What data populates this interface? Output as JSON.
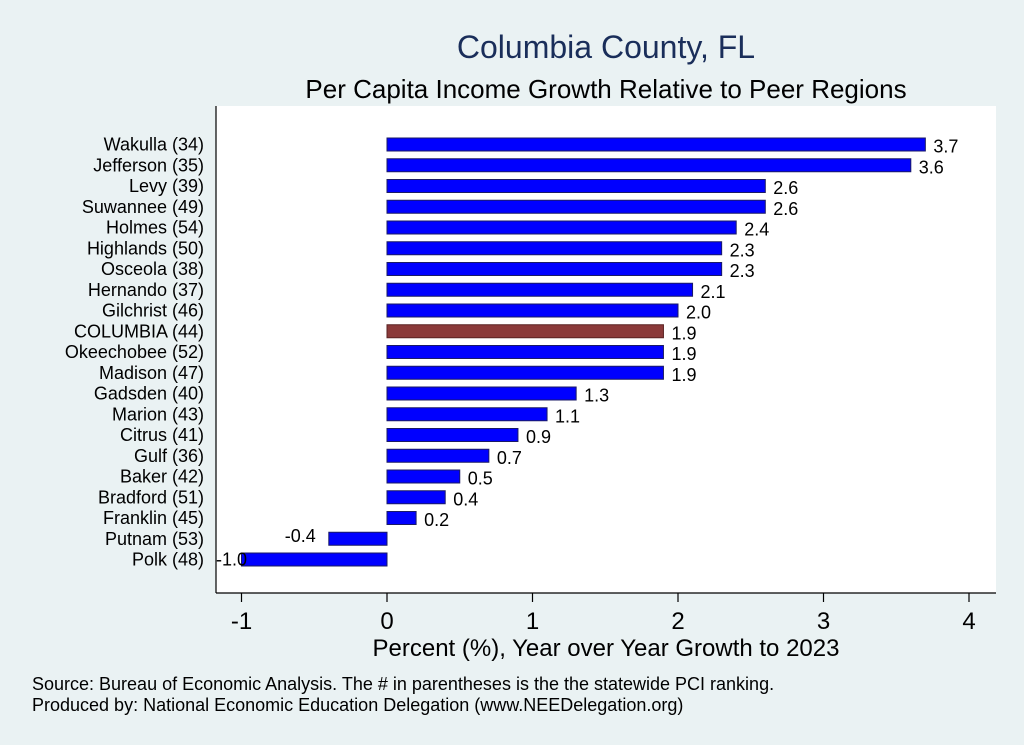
{
  "chart_data": {
    "type": "bar",
    "orientation": "horizontal",
    "title": "Columbia County, FL",
    "subtitle": "Per Capita Income Growth Relative to Peer Regions",
    "xlabel": "Percent (%), Year over Year Growth to 2023",
    "ylabel": "",
    "xlim": [
      -1.2,
      4.2
    ],
    "xticks": [
      -1,
      0,
      1,
      2,
      3,
      4
    ],
    "xtick_labels": [
      "-1",
      "0",
      "1",
      "2",
      "3",
      "4"
    ],
    "grid": false,
    "highlight_category": "COLUMBIA (44)",
    "categories": [
      "Wakulla (34)",
      "Jefferson (35)",
      "Levy (39)",
      "Suwannee (49)",
      "Holmes (54)",
      "Highlands (50)",
      "Osceola (38)",
      "Hernando (37)",
      "Gilchrist (46)",
      "COLUMBIA (44)",
      "Okeechobee (52)",
      "Madison (47)",
      "Gadsden (40)",
      "Marion (43)",
      "Citrus (41)",
      "Gulf (36)",
      "Baker (42)",
      "Bradford (51)",
      "Franklin (45)",
      "Putnam (53)",
      "Polk (48)"
    ],
    "values": [
      3.7,
      3.6,
      2.6,
      2.6,
      2.4,
      2.3,
      2.3,
      2.1,
      2.0,
      1.9,
      1.9,
      1.9,
      1.3,
      1.1,
      0.9,
      0.7,
      0.5,
      0.4,
      0.2,
      -0.4,
      -1.0
    ],
    "value_labels": [
      "3.7",
      "3.6",
      "2.6",
      "2.6",
      "2.4",
      "2.3",
      "2.3",
      "2.1",
      "2.0",
      "1.9",
      "1.9",
      "1.9",
      "1.3",
      "1.1",
      "0.9",
      "0.7",
      "0.5",
      "0.4",
      "0.2",
      "-0.4",
      "-1.0"
    ],
    "colors": {
      "bar": "#0000ff",
      "bar_outline": "#1a1a66",
      "highlight": "#8b3a3a",
      "plot_background": "#ffffff",
      "page_background": "#eaf2f3",
      "title": "#1a2e5a"
    }
  },
  "notes": {
    "source": "Source: Bureau of Economic Analysis. The # in parentheses is the the statewide PCI ranking.",
    "produced_by": "Produced by: National Economic Education Delegation (www.NEEDelegation.org)"
  }
}
